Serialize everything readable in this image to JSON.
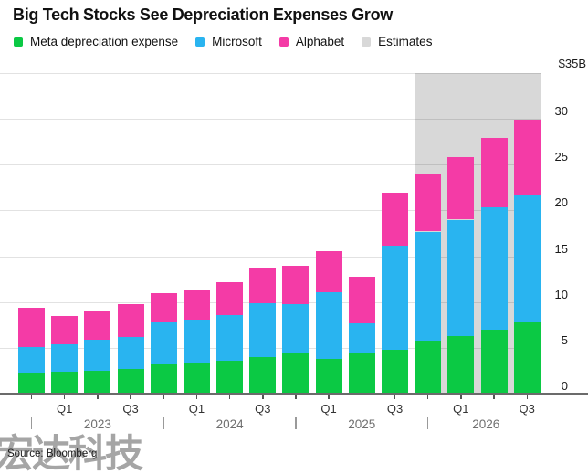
{
  "header": {
    "title": "Big Tech Stocks See Depreciation Expenses Grow"
  },
  "legend": {
    "items": [
      {
        "label": "Meta depreciation expense",
        "color": "#0bc944"
      },
      {
        "label": "Microsoft",
        "color": "#29b4f0"
      },
      {
        "label": "Alphabet",
        "color": "#f43ba6"
      },
      {
        "label": "Estimates",
        "color": "#d8d8d8"
      }
    ]
  },
  "chart_data": {
    "type": "bar",
    "stacked": true,
    "title": "Big Tech Stocks See Depreciation Expenses Grow",
    "unit": "billions USD",
    "categories": [
      "Q4 2022",
      "Q1 2023",
      "Q2 2023",
      "Q3 2023",
      "Q4 2023",
      "Q1 2024",
      "Q2 2024",
      "Q3 2024",
      "Q4 2024",
      "Q1 2025",
      "Q2 2025",
      "Q3 2025",
      "Q4 2025",
      "Q1 2026",
      "Q2 2026",
      "Q3 2026"
    ],
    "series": [
      {
        "name": "Meta depreciation expense",
        "color": "#0bc944",
        "values": [
          2.3,
          2.4,
          2.5,
          2.7,
          3.2,
          3.4,
          3.6,
          4.0,
          4.4,
          3.8,
          4.4,
          4.8,
          5.8,
          6.3,
          7.0,
          7.8
        ]
      },
      {
        "name": "Microsoft",
        "color": "#29b4f0",
        "values": [
          2.8,
          3.0,
          3.4,
          3.5,
          4.6,
          4.7,
          5.0,
          5.9,
          5.4,
          7.3,
          3.3,
          11.4,
          11.9,
          12.7,
          13.3,
          13.8
        ]
      },
      {
        "name": "Alphabet",
        "color": "#f43ba6",
        "values": [
          4.3,
          3.1,
          3.2,
          3.6,
          3.2,
          3.3,
          3.6,
          3.9,
          4.2,
          4.5,
          5.1,
          5.7,
          6.3,
          6.8,
          7.6,
          8.3
        ]
      }
    ],
    "estimates_from_index": 12,
    "estimates_color": "#d8d8d8",
    "ylim": [
      0,
      35
    ],
    "y_top_label": "$35B",
    "y_ticks": [
      30,
      25,
      20,
      15,
      10,
      5,
      0
    ],
    "grid": true,
    "legend_position": "top",
    "x_quarter_ticks": [
      {
        "label": "Q1",
        "index": 1
      },
      {
        "label": "Q3",
        "index": 3
      },
      {
        "label": "Q1",
        "index": 5
      },
      {
        "label": "Q3",
        "index": 7
      },
      {
        "label": "Q1",
        "index": 9
      },
      {
        "label": "Q3",
        "index": 11
      },
      {
        "label": "Q1",
        "index": 13
      },
      {
        "label": "Q3",
        "index": 15
      }
    ],
    "x_year_labels": [
      {
        "label": "2023",
        "separator_index": 0
      },
      {
        "label": "2024",
        "separator_index": 4
      },
      {
        "label": "2025",
        "separator_index": 8
      },
      {
        "label": "2026",
        "separator_index": 12
      }
    ]
  },
  "footer": {
    "source": "Source: Bloomberg",
    "watermark": "宏达科技"
  }
}
